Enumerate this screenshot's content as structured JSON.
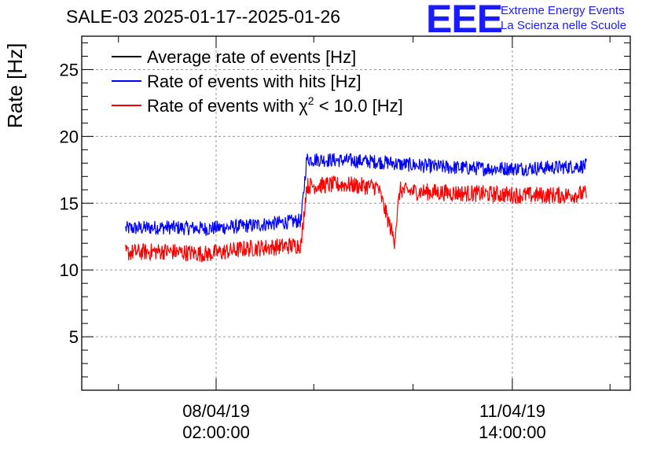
{
  "title": "SALE-03 2025-01-17--2025-01-26",
  "logo": {
    "text": "EEE",
    "line1": "Extreme Energy Events",
    "line2": "La Scienza nelle Scuole",
    "color": "#1a1aff"
  },
  "chart_data": {
    "type": "line",
    "title": "SALE-03 2025-01-17--2025-01-26",
    "ylabel": "Rate [Hz]",
    "xlabel": "",
    "ylim": [
      1,
      27.5
    ],
    "yticks": [
      5,
      10,
      15,
      20,
      25
    ],
    "xlim": [
      0,
      100
    ],
    "x_ticks": [
      {
        "x": 24.5,
        "date": "08/04/19",
        "time": "02:00:00"
      },
      {
        "x": 78.5,
        "date": "11/04/19",
        "time": "14:00:00"
      }
    ],
    "minor_ticks_x": [
      6.7,
      24.5,
      42.3,
      60.4,
      78.5,
      96.3
    ],
    "grid": true,
    "legend_position": "top-left",
    "series": [
      {
        "name": "Average rate of events [Hz]",
        "color": "#000000",
        "legend_only": true,
        "x": [],
        "values": []
      },
      {
        "name": "Rate of events with hits [Hz]",
        "color": "#0000ff",
        "noise": 0.55,
        "x": [
          8,
          15,
          23,
          30,
          38,
          40,
          41,
          48,
          54,
          57,
          58,
          59,
          66,
          73,
          80,
          88,
          92
        ],
        "values": [
          13.1,
          13.2,
          13.1,
          13.3,
          13.6,
          13.7,
          18.3,
          18.2,
          18.1,
          18.0,
          17.9,
          17.9,
          17.7,
          17.6,
          17.6,
          17.7,
          17.8
        ]
      },
      {
        "name": "Rate of events with χ² < 10.0 [Hz]",
        "name_parts": [
          "Rate of events with ",
          "χ",
          "2",
          " < 10.0 [Hz]"
        ],
        "color": "#ff0000",
        "noise": 0.65,
        "x": [
          8,
          15,
          23,
          30,
          38,
          40,
          41,
          48,
          54,
          57,
          58,
          59,
          66,
          73,
          80,
          88,
          92
        ],
        "values": [
          11.3,
          11.4,
          11.2,
          11.6,
          11.8,
          11.9,
          16.3,
          16.4,
          16.2,
          12.2,
          16.0,
          15.9,
          15.8,
          15.7,
          15.6,
          15.6,
          15.7
        ]
      }
    ]
  }
}
